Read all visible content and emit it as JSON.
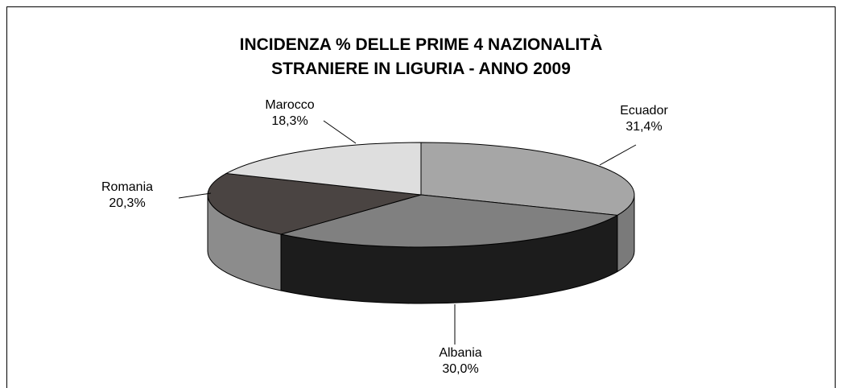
{
  "chart_data": {
    "type": "pie3d",
    "title": [
      "INCIDENZA % DELLE PRIME 4 NAZIONALITÀ",
      "STRANIERE IN LIGURIA - ANNO 2009"
    ],
    "categories": [
      "Ecuador",
      "Albania",
      "Romania",
      "Marocco"
    ],
    "values": [
      31.4,
      30.0,
      20.3,
      18.3
    ],
    "value_labels": [
      "31,4%",
      "30,0%",
      "20,3%",
      "18,3%"
    ],
    "colors": [
      "#a6a6a6",
      "#808080",
      "#4a4442",
      "#dedede"
    ],
    "side_colors": [
      "#7a7a7a",
      "#1c1c1c",
      "#8c8c8c",
      "#b0b0b0"
    ]
  }
}
